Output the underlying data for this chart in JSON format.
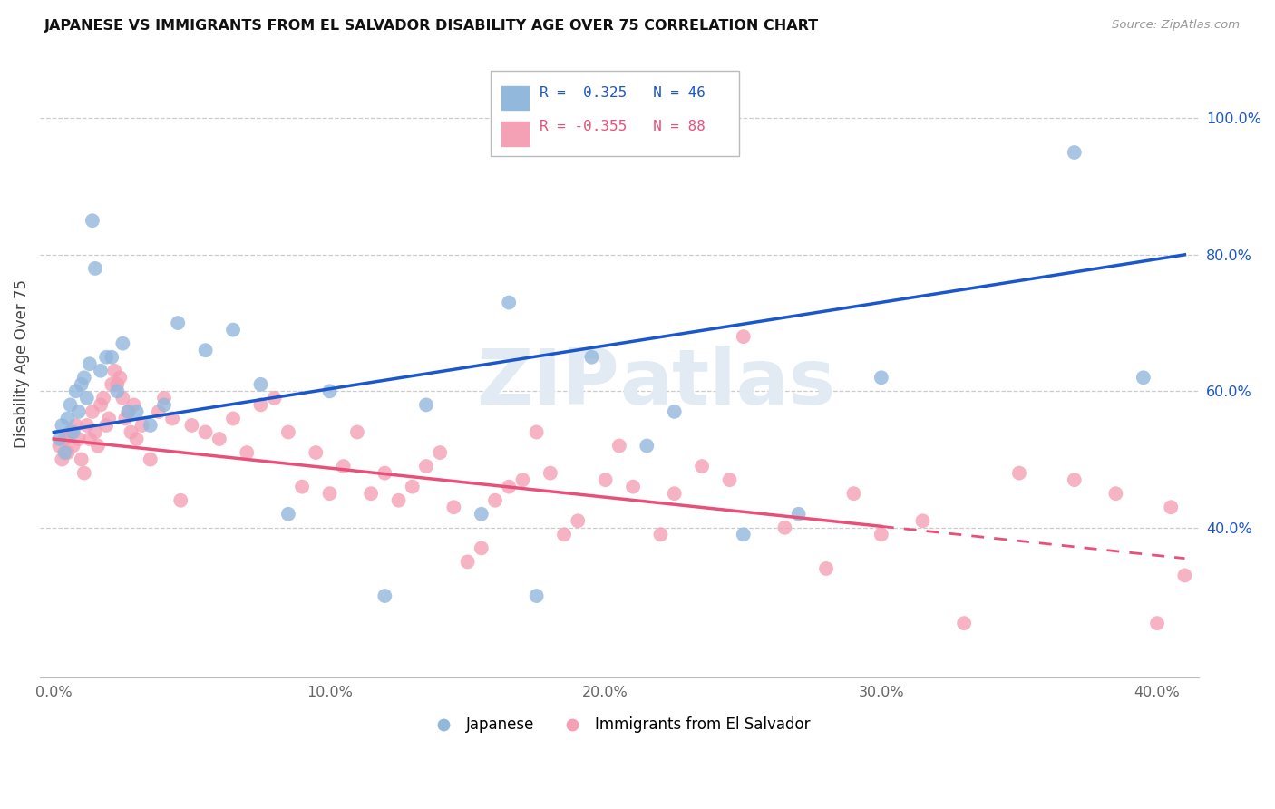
{
  "title": "JAPANESE VS IMMIGRANTS FROM EL SALVADOR DISABILITY AGE OVER 75 CORRELATION CHART",
  "source": "Source: ZipAtlas.com",
  "ylabel": "Disability Age Over 75",
  "x_tick_labels": [
    "0.0%",
    "10.0%",
    "20.0%",
    "30.0%",
    "40.0%"
  ],
  "x_tick_values": [
    0.0,
    10.0,
    20.0,
    30.0,
    40.0
  ],
  "y_tick_labels": [
    "40.0%",
    "60.0%",
    "80.0%",
    "100.0%"
  ],
  "y_tick_values": [
    40.0,
    60.0,
    80.0,
    100.0
  ],
  "xlim": [
    -0.5,
    41.5
  ],
  "ylim": [
    18.0,
    110.0
  ],
  "blue_color": "#92B8DC",
  "pink_color": "#F4A0B5",
  "blue_line_color": "#1A56CC",
  "pink_line_color": "#E8507A",
  "grid_color": "#CCCCCC",
  "watermark_color": "#E2EAF4",
  "blue_trend_x0": 0.0,
  "blue_trend_y0": 54.0,
  "blue_trend_x1": 41.0,
  "blue_trend_y1": 80.0,
  "pink_trend_x0": 0.0,
  "pink_trend_y0": 53.0,
  "pink_trend_x1": 41.0,
  "pink_trend_y1": 35.5,
  "pink_dash_start_x": 30.0,
  "japanese_x": [
    0.2,
    0.3,
    0.4,
    0.5,
    0.6,
    0.7,
    0.8,
    0.9,
    1.0,
    1.1,
    1.2,
    1.3,
    1.4,
    1.5,
    1.7,
    1.9,
    2.1,
    2.3,
    2.5,
    2.7,
    3.0,
    3.5,
    4.0,
    4.5,
    5.5,
    6.5,
    7.5,
    8.5,
    10.0,
    12.0,
    13.5,
    15.5,
    16.5,
    17.5,
    19.5,
    21.5,
    22.5,
    25.0,
    27.0,
    30.0,
    37.0,
    39.5
  ],
  "japanese_y": [
    53.0,
    55.0,
    51.0,
    56.0,
    58.0,
    54.0,
    60.0,
    57.0,
    61.0,
    62.0,
    59.0,
    64.0,
    85.0,
    78.0,
    63.0,
    65.0,
    65.0,
    60.0,
    67.0,
    57.0,
    57.0,
    55.0,
    58.0,
    70.0,
    66.0,
    69.0,
    61.0,
    42.0,
    60.0,
    30.0,
    58.0,
    42.0,
    73.0,
    30.0,
    65.0,
    52.0,
    57.0,
    39.0,
    42.0,
    62.0,
    95.0,
    62.0
  ],
  "salvador_x": [
    0.2,
    0.3,
    0.4,
    0.5,
    0.6,
    0.7,
    0.8,
    0.9,
    1.0,
    1.1,
    1.2,
    1.3,
    1.4,
    1.5,
    1.6,
    1.7,
    1.8,
    1.9,
    2.0,
    2.1,
    2.2,
    2.3,
    2.4,
    2.5,
    2.6,
    2.7,
    2.8,
    2.9,
    3.0,
    3.2,
    3.5,
    3.8,
    4.0,
    4.3,
    4.6,
    5.0,
    5.5,
    6.0,
    6.5,
    7.0,
    7.5,
    8.0,
    8.5,
    9.0,
    9.5,
    10.0,
    10.5,
    11.0,
    11.5,
    12.0,
    12.5,
    13.0,
    13.5,
    14.0,
    14.5,
    15.0,
    15.5,
    16.0,
    16.5,
    17.0,
    17.5,
    18.0,
    18.5,
    19.0,
    20.0,
    20.5,
    21.0,
    22.0,
    22.5,
    23.5,
    24.5,
    25.0,
    26.5,
    28.0,
    29.0,
    30.0,
    31.5,
    33.0,
    35.0,
    37.0,
    38.5,
    40.0,
    40.5,
    41.0
  ],
  "salvador_y": [
    52.0,
    50.0,
    53.0,
    51.0,
    54.0,
    52.0,
    55.0,
    53.0,
    50.0,
    48.0,
    55.0,
    53.0,
    57.0,
    54.0,
    52.0,
    58.0,
    59.0,
    55.0,
    56.0,
    61.0,
    63.0,
    61.0,
    62.0,
    59.0,
    56.0,
    57.0,
    54.0,
    58.0,
    53.0,
    55.0,
    50.0,
    57.0,
    59.0,
    56.0,
    44.0,
    55.0,
    54.0,
    53.0,
    56.0,
    51.0,
    58.0,
    59.0,
    54.0,
    46.0,
    51.0,
    45.0,
    49.0,
    54.0,
    45.0,
    48.0,
    44.0,
    46.0,
    49.0,
    51.0,
    43.0,
    35.0,
    37.0,
    44.0,
    46.0,
    47.0,
    54.0,
    48.0,
    39.0,
    41.0,
    47.0,
    52.0,
    46.0,
    39.0,
    45.0,
    49.0,
    47.0,
    68.0,
    40.0,
    34.0,
    45.0,
    39.0,
    41.0,
    26.0,
    48.0,
    47.0,
    45.0,
    26.0,
    43.0,
    33.0
  ]
}
